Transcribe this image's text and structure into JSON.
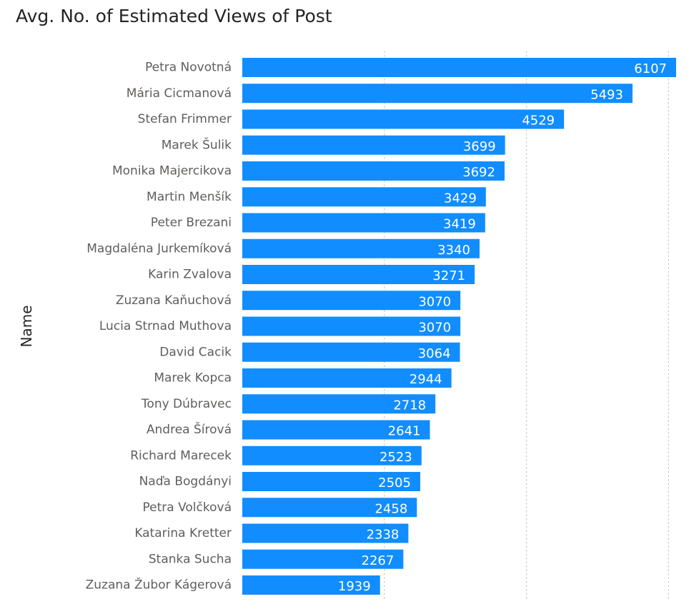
{
  "chart_data": {
    "type": "bar",
    "orientation": "horizontal",
    "title": "Avg. No. of Estimated Views of Post",
    "ylabel": "Name",
    "xlabel": "",
    "categories": [
      "Petra Novotná",
      "Mária Cicmanová",
      "Stefan Frimmer",
      "Marek Šulik",
      "Monika Majercikova",
      "Martin Menšík",
      "Peter Brezani",
      "Magdaléna Jurkemíková",
      "Karin Zvalova",
      "Zuzana Kaňuchová",
      "Lucia Strnad Muthova",
      "David Cacik",
      "Marek Kopca",
      "Tony Dúbravec",
      "Andrea Šírová",
      "Richard Marecek",
      "Naďa Bogdányi",
      "Petra Volčková",
      "Katarina Kretter",
      "Stanka Sucha",
      "Zuzana Žubor Kágerová"
    ],
    "values": [
      6107,
      5493,
      4529,
      3699,
      3692,
      3429,
      3419,
      3340,
      3271,
      3070,
      3070,
      3064,
      2944,
      2718,
      2641,
      2523,
      2505,
      2458,
      2338,
      2267,
      1939
    ],
    "xlim": [
      0,
      6107
    ],
    "gridlines_at": [
      2000,
      4000,
      6000
    ],
    "grid": true,
    "data_labels": true,
    "legend": "none",
    "colors": {
      "bar": "#118DFF",
      "data_label": "#FFFFFF",
      "category_label": "#605E5C",
      "gridline": "#C8C6C4",
      "title": "#252423"
    }
  }
}
